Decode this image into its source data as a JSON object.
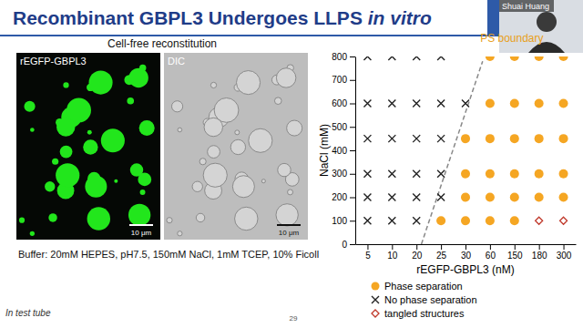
{
  "slide": {
    "title": [
      "Recombinant GBPL3 Undergoes LLPS",
      "in vitro"
    ],
    "presenter": "Shuai Huang",
    "section_title": "Cell-free reconstitution",
    "panels": [
      "rEGFP-GBPL3",
      "DIC"
    ],
    "scale_bar": "10 μm",
    "buffer": "Buffer: 20mM HEPES, pH7.5, 150mM NaCl, 1mM TCEP, 10% Ficoll",
    "footnote": "In test tube",
    "page_number": "29"
  },
  "chart_data": {
    "type": "scatter",
    "categories": [
      "5",
      "10",
      "20",
      "25",
      "30",
      "60",
      "150",
      "180",
      "300"
    ],
    "x_label": "rEGFP-GBPL3 (nM)",
    "y_label": "NaCl (mM)",
    "ylim": [
      0,
      800
    ],
    "yticks": [
      0,
      100,
      200,
      300,
      400,
      500,
      600,
      700,
      800
    ],
    "annotations": [
      {
        "text": "PS boundary",
        "x": [
          2.2,
          4.7
        ],
        "values": [
          0,
          780
        ],
        "line_style": "dashed",
        "color": "#888888"
      }
    ],
    "series": [
      {
        "name": "Phase separation",
        "color": "#f5a623",
        "marker": "circle",
        "x": [
          "60",
          "150",
          "180",
          "300",
          "60",
          "150",
          "180",
          "300",
          "30",
          "60",
          "150",
          "180",
          "300",
          "30",
          "60",
          "150",
          "180",
          "300",
          "30",
          "60",
          "150",
          "180",
          "300",
          "25",
          "30",
          "60",
          "150"
        ],
        "values": [
          800,
          800,
          800,
          800,
          600,
          600,
          600,
          600,
          450,
          450,
          450,
          450,
          450,
          300,
          300,
          300,
          300,
          300,
          200,
          200,
          200,
          200,
          200,
          100,
          100,
          100,
          100
        ]
      },
      {
        "name": "No phase separation",
        "color": "#222222",
        "marker": "x",
        "x": [
          "5",
          "10",
          "20",
          "25",
          "5",
          "10",
          "20",
          "25",
          "30",
          "5",
          "10",
          "20",
          "25",
          "5",
          "10",
          "20",
          "25",
          "5",
          "10",
          "20",
          "25",
          "5",
          "10",
          "20"
        ],
        "values": [
          800,
          800,
          800,
          800,
          600,
          600,
          600,
          600,
          600,
          450,
          450,
          450,
          450,
          300,
          300,
          300,
          300,
          200,
          200,
          200,
          200,
          100,
          100,
          100
        ]
      },
      {
        "name": "tangled structures",
        "color": "#c0392b",
        "marker": "diamond-open",
        "x": [
          "180",
          "300"
        ],
        "values": [
          100,
          100
        ]
      }
    ]
  }
}
